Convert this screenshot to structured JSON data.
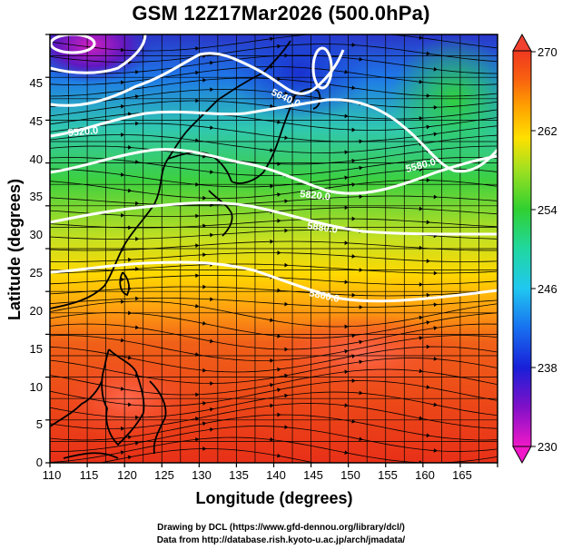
{
  "title": "GSM 12Z17Mar2026 (500.0hPa)",
  "x_axis": {
    "label": "Longitude (degrees)",
    "ticks": [
      "110",
      "115",
      "120",
      "125",
      "130",
      "135",
      "140",
      "145",
      "150",
      "155",
      "160",
      "165"
    ]
  },
  "y_axis": {
    "label": "Latitude  (degrees)",
    "ticks": [
      "0",
      "5",
      "10",
      "15",
      "20",
      "25",
      "30",
      "35",
      "40",
      "45"
    ]
  },
  "colorbar": {
    "ticks": [
      "230",
      "238",
      "246",
      "254",
      "262",
      "270"
    ]
  },
  "contours": [
    {
      "label": "5640.0"
    },
    {
      "label": "5520.0"
    },
    {
      "label": "5580.0"
    },
    {
      "label": "5820.0"
    },
    {
      "label": "5880.0"
    },
    {
      "label": "5860.0"
    }
  ],
  "credits": {
    "line1": "Drawing by DCL (https://www.gfd-dennou.org/library/dcl/)",
    "line2": "Data from http://database.rish.kyoto-u.ac.jp/arch/jmadata/"
  },
  "colors": {
    "cold": "#d000d0",
    "cool": "#1048e0",
    "mid": "#20c040",
    "warm": "#ffd000",
    "hot": "#e82c10"
  }
}
